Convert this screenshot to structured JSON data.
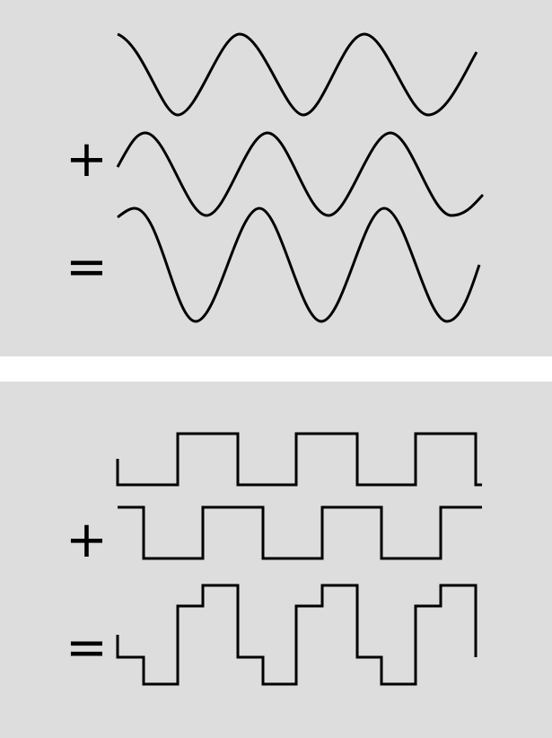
{
  "colors": {
    "panel_background": "#dddddd",
    "stroke": "#000000",
    "gap": "#ffffff"
  },
  "panels": [
    {
      "kind": "sine",
      "operators": {
        "plus": "+",
        "equals": "="
      },
      "waves": [
        {
          "role": "addend-1",
          "cycles": 3,
          "amplitude": 1
        },
        {
          "role": "addend-2",
          "cycles": 3,
          "amplitude": 1
        },
        {
          "role": "sum",
          "cycles": 3,
          "amplitude": 2
        }
      ]
    },
    {
      "kind": "square",
      "operators": {
        "plus": "+",
        "equals": "="
      },
      "waves": [
        {
          "role": "addend-1",
          "cycles": 3,
          "levels": [
            0,
            1
          ]
        },
        {
          "role": "addend-2",
          "cycles": 3,
          "levels": [
            1,
            0
          ]
        },
        {
          "role": "sum",
          "cycles": 3,
          "levels": [
            -1,
            0,
            1,
            2
          ]
        }
      ]
    }
  ]
}
